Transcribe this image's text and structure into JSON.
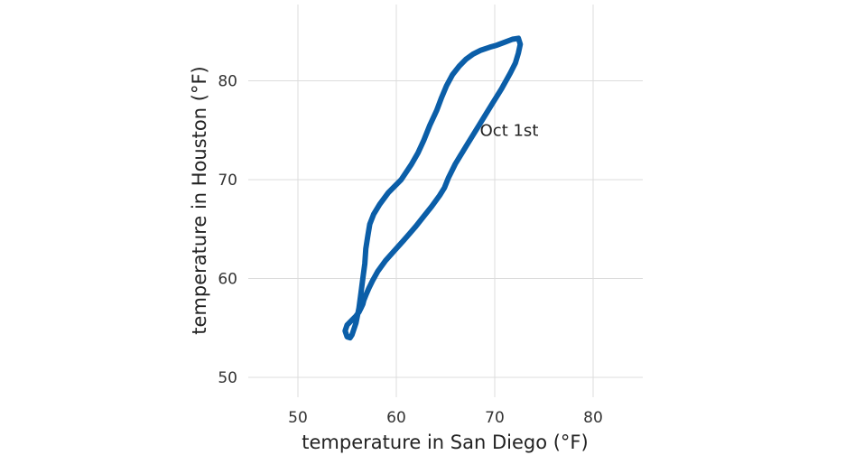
{
  "chart_data": {
    "type": "line",
    "xlabel": "temperature in San Diego (°F)",
    "ylabel": "temperature in Houston (°F)",
    "xlim": [
      45,
      85
    ],
    "ylim": [
      48,
      86
    ],
    "xticks": [
      50,
      60,
      70,
      80
    ],
    "yticks": [
      50,
      60,
      70,
      80
    ],
    "grid": true,
    "annotations": [
      {
        "text": "Oct 1st",
        "x": 68.5,
        "y": 75
      }
    ],
    "colors": {
      "series": "#0b5ea8"
    },
    "series": [
      {
        "x": [
          55.3,
          55.5,
          55.9,
          56.2,
          56.4,
          56.6,
          56.8,
          56.9,
          57.1,
          57.3,
          57.7,
          58.3,
          59.2,
          60.5,
          61.5,
          62.2,
          62.8,
          63.4,
          64.1,
          64.6,
          65.1,
          65.7,
          66.4,
          67.1,
          67.8,
          68.6,
          69.5,
          70.2,
          71.0,
          71.8,
          72.4,
          72.6,
          72.4,
          72.1,
          71.6,
          70.7,
          69.7,
          68.4,
          67.1,
          66.0,
          65.3,
          64.9,
          64.4,
          63.6,
          62.8,
          62.0,
          61.4,
          60.7,
          59.8,
          58.9,
          58.1,
          57.6,
          57.2,
          56.9,
          56.7,
          56.6,
          56.4,
          56.2,
          55.9,
          55.5,
          55.0,
          54.8,
          55.0,
          55.3
        ],
        "y": [
          54.0,
          54.3,
          55.5,
          57.0,
          58.5,
          60.0,
          61.5,
          63.0,
          64.3,
          65.5,
          66.5,
          67.5,
          68.7,
          70.0,
          71.5,
          72.7,
          74.0,
          75.5,
          77.0,
          78.3,
          79.5,
          80.6,
          81.5,
          82.2,
          82.7,
          83.1,
          83.4,
          83.6,
          83.9,
          84.2,
          84.3,
          83.7,
          82.8,
          81.8,
          80.8,
          79.2,
          77.6,
          75.5,
          73.4,
          71.6,
          70.2,
          69.2,
          68.4,
          67.3,
          66.3,
          65.3,
          64.6,
          63.8,
          62.8,
          61.8,
          60.7,
          59.8,
          59.0,
          58.3,
          57.8,
          57.4,
          57.0,
          56.6,
          56.2,
          55.8,
          55.3,
          54.7,
          54.1,
          54.0
        ]
      }
    ]
  }
}
